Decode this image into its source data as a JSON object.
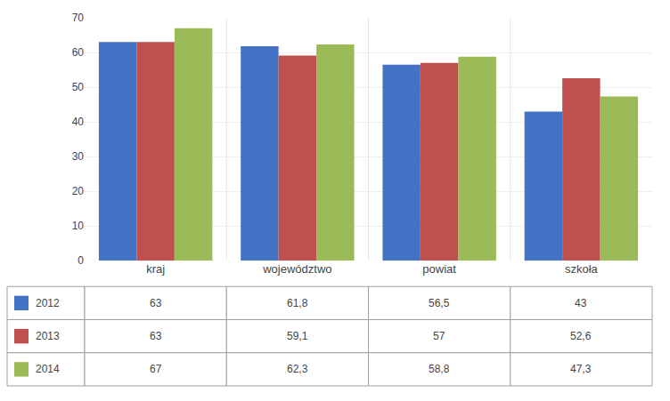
{
  "chart_data": {
    "type": "bar",
    "categories": [
      "kraj",
      "województwo",
      "powiat",
      "szkoła"
    ],
    "series": [
      {
        "name": "2012",
        "color": "#4472C4",
        "values": [
          63,
          61.8,
          56.5,
          43
        ],
        "value_labels": [
          "63",
          "61,8",
          "56,5",
          "43"
        ]
      },
      {
        "name": "2013",
        "color": "#C0504D",
        "values": [
          63,
          59.1,
          57,
          52.6
        ],
        "value_labels": [
          "63",
          "59,1",
          "57",
          "52,6"
        ]
      },
      {
        "name": "2014",
        "color": "#9BBB59",
        "values": [
          67,
          62.3,
          58.8,
          47.3
        ],
        "value_labels": [
          "67",
          "62,3",
          "58,8",
          "47,3"
        ]
      }
    ],
    "ylim": [
      0,
      70
    ],
    "yticks": [
      0,
      10,
      20,
      30,
      40,
      50,
      60,
      70
    ],
    "grid": true
  }
}
